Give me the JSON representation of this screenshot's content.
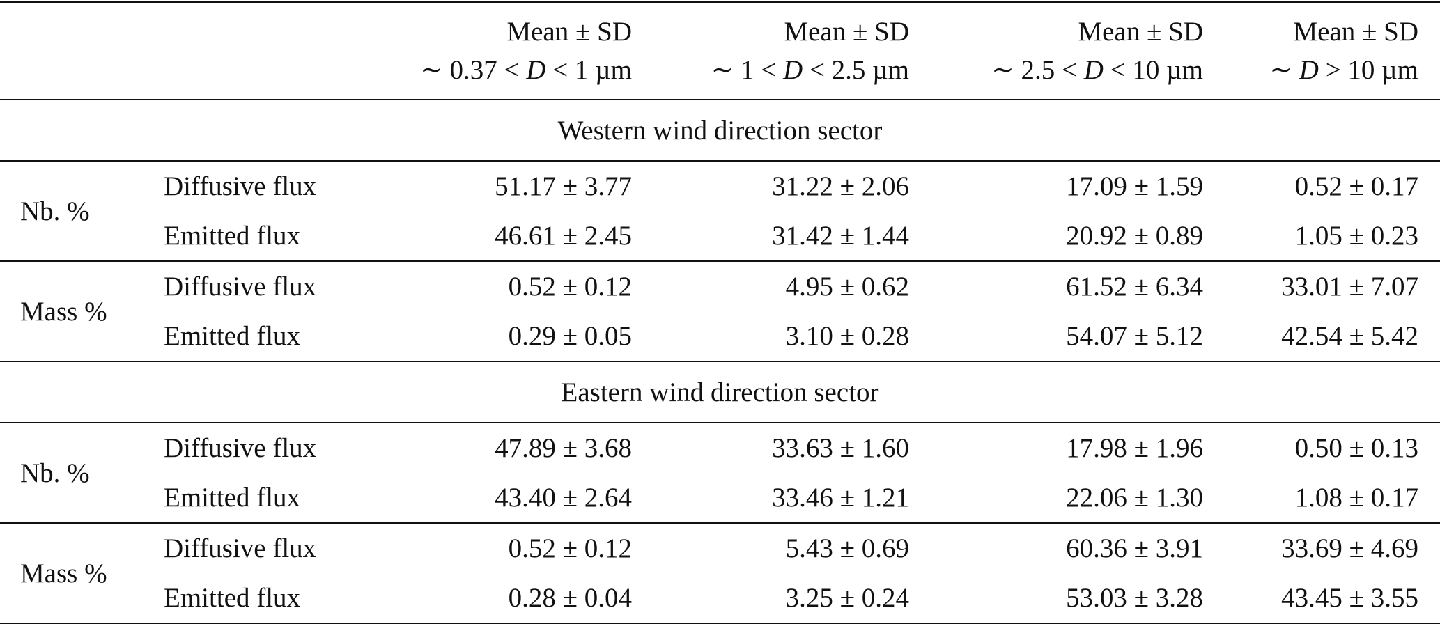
{
  "header": {
    "columns": [
      {
        "line1": "Mean ± SD",
        "pre": "∼ 0.37 < ",
        "var": "D",
        "post": " < 1 µm"
      },
      {
        "line1": "Mean ± SD",
        "pre": "∼ 1 < ",
        "var": "D",
        "post": " < 2.5 µm"
      },
      {
        "line1": "Mean ± SD",
        "pre": "∼ 2.5 < ",
        "var": "D",
        "post": " < 10 µm"
      },
      {
        "line1": "Mean ± SD",
        "pre": "∼ ",
        "var": "D",
        "post": " > 10 µm"
      }
    ]
  },
  "sections": [
    {
      "title": "Western wind direction sector",
      "groups": [
        {
          "label": "Nb. %",
          "rows": [
            {
              "name": "Diffusive flux",
              "values": [
                "51.17 ± 3.77",
                "31.22 ± 2.06",
                "17.09 ± 1.59",
                "0.52 ± 0.17"
              ]
            },
            {
              "name": "Emitted flux",
              "values": [
                "46.61 ± 2.45",
                "31.42 ± 1.44",
                "20.92 ± 0.89",
                "1.05 ± 0.23"
              ]
            }
          ]
        },
        {
          "label": "Mass %",
          "rows": [
            {
              "name": "Diffusive flux",
              "values": [
                "0.52 ± 0.12",
                "4.95 ± 0.62",
                "61.52 ± 6.34",
                "33.01 ± 7.07"
              ]
            },
            {
              "name": "Emitted flux",
              "values": [
                "0.29 ± 0.05",
                "3.10 ± 0.28",
                "54.07 ± 5.12",
                "42.54 ± 5.42"
              ]
            }
          ]
        }
      ]
    },
    {
      "title": "Eastern wind direction sector",
      "groups": [
        {
          "label": "Nb. %",
          "rows": [
            {
              "name": "Diffusive flux",
              "values": [
                "47.89 ± 3.68",
                "33.63 ± 1.60",
                "17.98 ± 1.96",
                "0.50 ± 0.13"
              ]
            },
            {
              "name": "Emitted flux",
              "values": [
                "43.40 ± 2.64",
                "33.46 ± 1.21",
                "22.06 ± 1.30",
                "1.08 ± 0.17"
              ]
            }
          ]
        },
        {
          "label": "Mass %",
          "rows": [
            {
              "name": "Diffusive flux",
              "values": [
                "0.52 ± 0.12",
                "5.43 ± 0.69",
                "60.36 ± 3.91",
                "33.69 ± 4.69"
              ]
            },
            {
              "name": "Emitted flux",
              "values": [
                "0.28 ± 0.04",
                "3.25 ± 0.24",
                "53.03 ± 3.28",
                "43.45 ± 3.55"
              ]
            }
          ]
        }
      ]
    }
  ]
}
